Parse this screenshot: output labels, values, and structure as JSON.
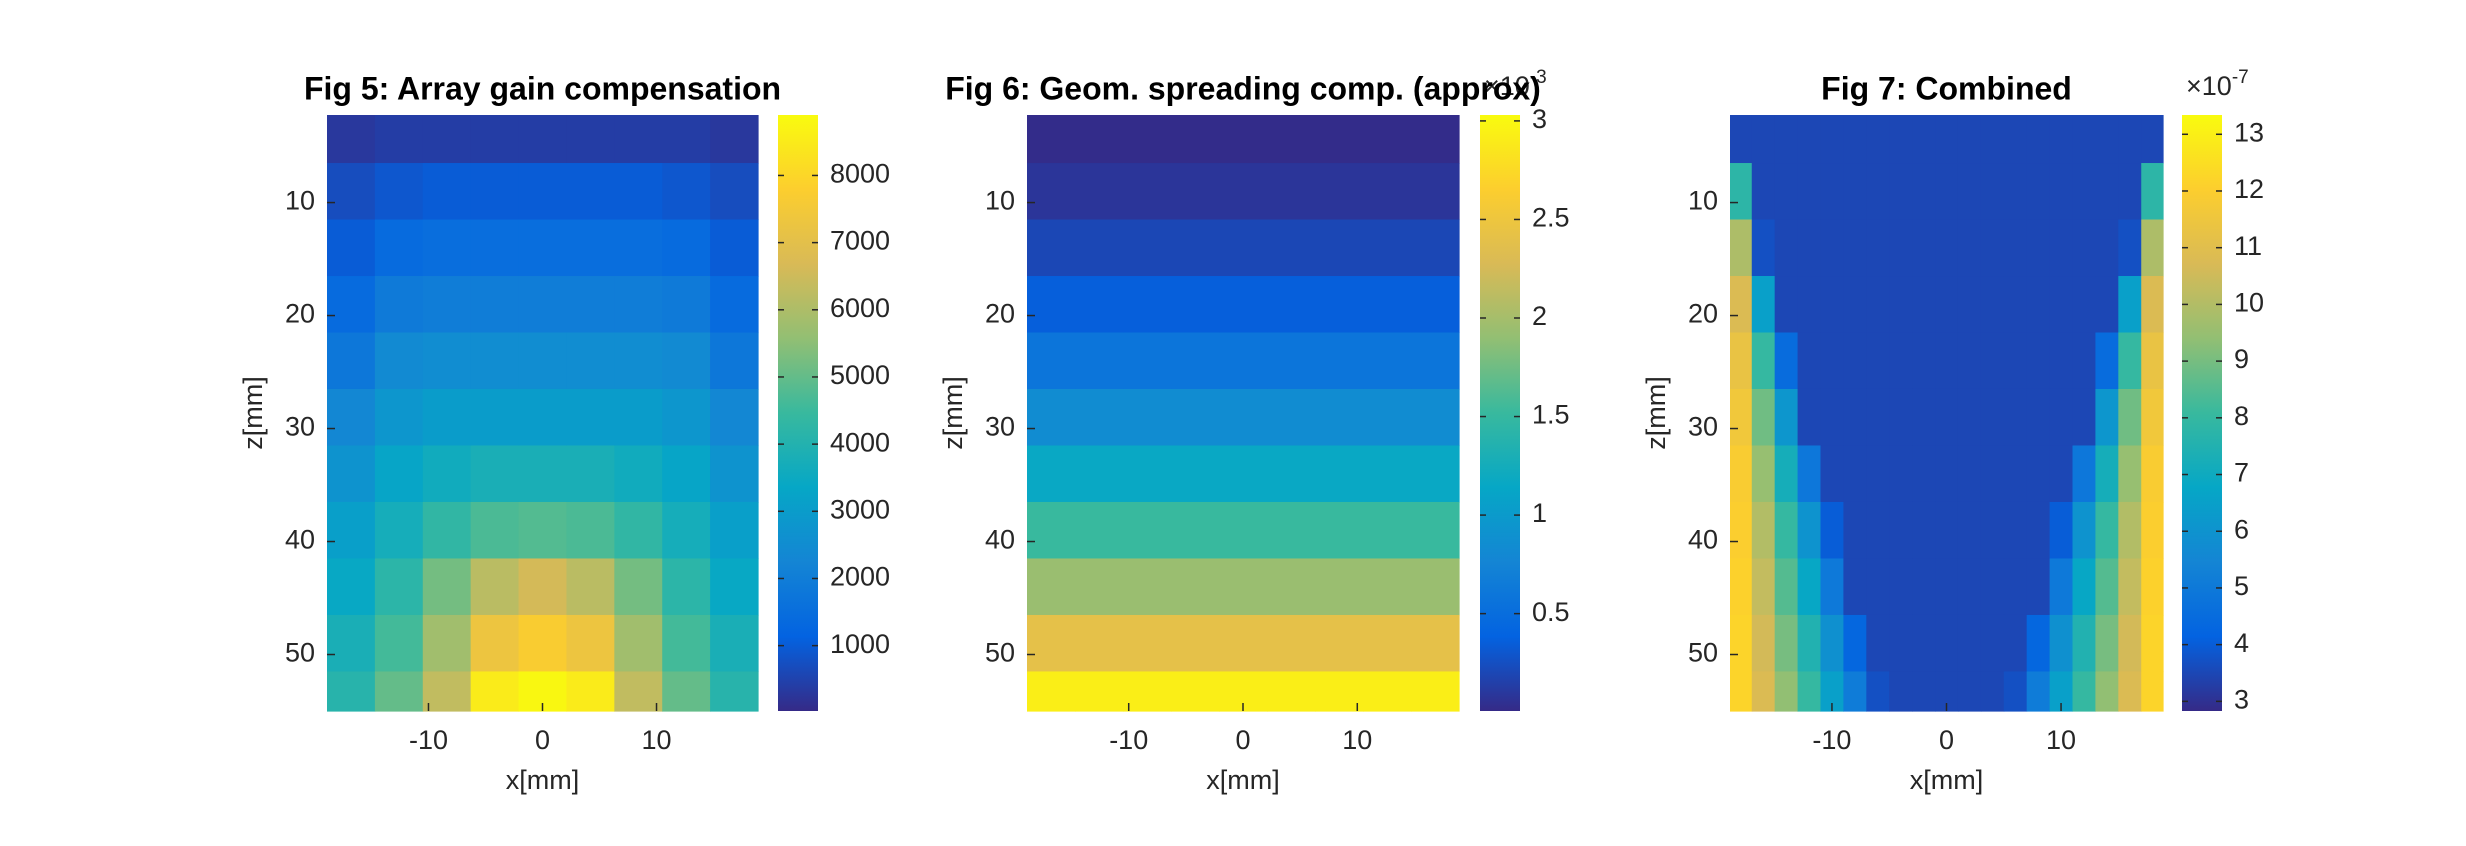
{
  "chart_data": [
    {
      "type": "heatmap",
      "title": "Fig 5: Array gain compensation",
      "xlabel": "x[mm]",
      "ylabel": "z[mm]",
      "colormap": "parula",
      "ydir": "reverse",
      "xlim": [
        -18.9,
        18.9
      ],
      "ylim": [
        2.25,
        55
      ],
      "xticks": [
        -10,
        0,
        10
      ],
      "yticks": [
        10,
        20,
        30,
        40,
        50
      ],
      "clim": [
        27,
        8900
      ],
      "cticks": [
        1000,
        2000,
        3000,
        4000,
        5000,
        6000,
        7000,
        8000
      ],
      "x": [
        -16.8,
        -12.6,
        -8.4,
        -4.2,
        0,
        4.2,
        8.4,
        12.6,
        16.8
      ],
      "y": [
        4,
        9,
        14,
        19,
        24,
        29,
        34,
        39,
        44,
        49,
        54
      ],
      "z": [
        [
          300,
          400,
          400,
          400,
          400,
          400,
          400,
          400,
          300
        ],
        [
          700,
          900,
          1000,
          1000,
          1000,
          1000,
          1000,
          900,
          700
        ],
        [
          1000,
          1400,
          1500,
          1500,
          1500,
          1500,
          1500,
          1400,
          1000
        ],
        [
          1400,
          1900,
          2000,
          2000,
          2000,
          2000,
          2000,
          1900,
          1400
        ],
        [
          1800,
          2400,
          2500,
          2500,
          2500,
          2500,
          2500,
          2400,
          1800
        ],
        [
          2300,
          2800,
          3000,
          3000,
          3000,
          3000,
          3000,
          2800,
          2300
        ],
        [
          2700,
          3300,
          3600,
          3800,
          3800,
          3800,
          3600,
          3300,
          2700
        ],
        [
          3100,
          3700,
          4300,
          4700,
          4800,
          4700,
          4300,
          3700,
          3100
        ],
        [
          3400,
          4200,
          5200,
          6200,
          6600,
          6200,
          5200,
          4200,
          3400
        ],
        [
          3800,
          4600,
          5800,
          7300,
          7700,
          7300,
          5800,
          4600,
          3800
        ],
        [
          4100,
          5000,
          6300,
          8500,
          8800,
          8500,
          6300,
          5000,
          4100
        ]
      ]
    },
    {
      "type": "heatmap",
      "title": "Fig 6: Geom. spreading comp. (approx)",
      "xlabel": "x[mm]",
      "ylabel": "z[mm]",
      "colormap": "parula",
      "ydir": "reverse",
      "colorbar_base": "×10",
      "colorbar_exponent": "-3",
      "xlim": [
        -18.9,
        18.9
      ],
      "ylim": [
        2.25,
        55
      ],
      "xticks": [
        -10,
        0,
        10
      ],
      "yticks": [
        10,
        20,
        30,
        40,
        50
      ],
      "clim": [
        0.006,
        3.03
      ],
      "cticks": [
        0.5,
        1,
        1.5,
        2,
        2.5,
        3
      ],
      "x": [
        -16.8,
        -12.6,
        -8.4,
        -4.2,
        0,
        4.2,
        8.4,
        12.6,
        16.8
      ],
      "y": [
        4,
        9,
        14,
        19,
        24,
        29,
        34,
        39,
        44,
        49,
        54
      ],
      "z": [
        [
          0.02,
          0.02,
          0.02,
          0.02,
          0.02,
          0.02,
          0.02,
          0.02,
          0.02
        ],
        [
          0.08,
          0.08,
          0.08,
          0.08,
          0.08,
          0.08,
          0.08,
          0.08,
          0.08
        ],
        [
          0.2,
          0.2,
          0.2,
          0.2,
          0.2,
          0.2,
          0.2,
          0.2,
          0.2
        ],
        [
          0.36,
          0.36,
          0.36,
          0.36,
          0.36,
          0.36,
          0.36,
          0.36,
          0.36
        ],
        [
          0.58,
          0.58,
          0.58,
          0.58,
          0.58,
          0.58,
          0.58,
          0.58,
          0.58
        ],
        [
          0.84,
          0.84,
          0.84,
          0.84,
          0.84,
          0.84,
          0.84,
          0.84,
          0.84
        ],
        [
          1.16,
          1.16,
          1.16,
          1.16,
          1.16,
          1.16,
          1.16,
          1.16,
          1.16
        ],
        [
          1.52,
          1.52,
          1.52,
          1.52,
          1.52,
          1.52,
          1.52,
          1.52,
          1.52
        ],
        [
          1.94,
          1.94,
          1.94,
          1.94,
          1.94,
          1.94,
          1.94,
          1.94,
          1.94
        ],
        [
          2.4,
          2.4,
          2.4,
          2.4,
          2.4,
          2.4,
          2.4,
          2.4,
          2.4
        ],
        [
          2.92,
          2.92,
          2.92,
          2.92,
          2.92,
          2.92,
          2.92,
          2.92,
          2.92
        ]
      ]
    },
    {
      "type": "heatmap",
      "title": "Fig 7: Combined",
      "xlabel": "x[mm]",
      "ylabel": "z[mm]",
      "colormap": "parula",
      "ydir": "reverse",
      "colorbar_base": "×10",
      "colorbar_exponent": "-7",
      "xlim": [
        -18.9,
        18.9
      ],
      "ylim": [
        2.25,
        55
      ],
      "xticks": [
        -10,
        0,
        10
      ],
      "yticks": [
        10,
        20,
        30,
        40,
        50
      ],
      "clim": [
        2.83,
        13.34
      ],
      "cticks": [
        3,
        4,
        5,
        6,
        7,
        8,
        9,
        10,
        11,
        12,
        13
      ],
      "x": [
        -18,
        -16,
        -14,
        -12,
        -10,
        -8,
        -6,
        -4,
        -2,
        0,
        2,
        4,
        6,
        8,
        10,
        12,
        14,
        16,
        18
      ],
      "y": [
        4,
        9,
        14,
        19,
        24,
        29,
        34,
        39,
        44,
        49,
        54
      ],
      "z": [
        [
          3.5,
          3.5,
          3.5,
          3.5,
          3.5,
          3.5,
          3.5,
          3.5,
          3.5,
          3.5,
          3.5,
          3.5,
          3.5,
          3.5,
          3.5,
          3.5,
          3.5,
          3.5,
          3.5
        ],
        [
          7.8,
          3.5,
          3.5,
          3.5,
          3.5,
          3.5,
          3.5,
          3.5,
          3.5,
          3.5,
          3.5,
          3.5,
          3.5,
          3.5,
          3.5,
          3.5,
          3.5,
          3.5,
          7.8
        ],
        [
          9.9,
          3.7,
          3.5,
          3.5,
          3.5,
          3.5,
          3.5,
          3.5,
          3.5,
          3.5,
          3.5,
          3.5,
          3.5,
          3.5,
          3.5,
          3.5,
          3.5,
          3.7,
          9.9
        ],
        [
          10.8,
          6.5,
          3.5,
          3.5,
          3.5,
          3.5,
          3.5,
          3.5,
          3.5,
          3.5,
          3.5,
          3.5,
          3.5,
          3.5,
          3.5,
          3.5,
          3.5,
          6.5,
          10.8
        ],
        [
          11.3,
          8.0,
          4.5,
          3.5,
          3.5,
          3.5,
          3.5,
          3.5,
          3.5,
          3.5,
          3.5,
          3.5,
          3.5,
          3.5,
          3.5,
          3.5,
          4.5,
          8.0,
          11.3
        ],
        [
          11.6,
          8.9,
          6.1,
          3.5,
          3.5,
          3.5,
          3.5,
          3.5,
          3.5,
          3.5,
          3.5,
          3.5,
          3.5,
          3.5,
          3.5,
          3.5,
          6.1,
          8.9,
          11.6
        ],
        [
          11.9,
          9.5,
          7.2,
          4.9,
          3.5,
          3.5,
          3.5,
          3.5,
          3.5,
          3.5,
          3.5,
          3.5,
          3.5,
          3.5,
          3.5,
          4.9,
          7.2,
          9.5,
          11.9
        ],
        [
          12.0,
          10.0,
          8.0,
          6.0,
          4.0,
          3.5,
          3.5,
          3.5,
          3.5,
          3.5,
          3.5,
          3.5,
          3.5,
          3.5,
          4.0,
          6.0,
          8.0,
          10.0,
          12.0
        ],
        [
          12.1,
          10.3,
          8.5,
          6.8,
          5.0,
          3.5,
          3.5,
          3.5,
          3.5,
          3.5,
          3.5,
          3.5,
          3.5,
          3.5,
          5.0,
          6.8,
          8.5,
          10.3,
          12.1
        ],
        [
          12.2,
          10.6,
          9.0,
          7.5,
          5.9,
          4.3,
          3.5,
          3.5,
          3.5,
          3.5,
          3.5,
          3.5,
          3.5,
          4.3,
          5.9,
          7.5,
          9.0,
          10.6,
          12.2
        ],
        [
          12.2,
          10.8,
          9.4,
          8.0,
          6.5,
          5.1,
          3.7,
          3.5,
          3.5,
          3.5,
          3.5,
          3.5,
          3.7,
          5.1,
          6.5,
          8.0,
          9.4,
          10.8,
          12.2
        ]
      ]
    }
  ]
}
